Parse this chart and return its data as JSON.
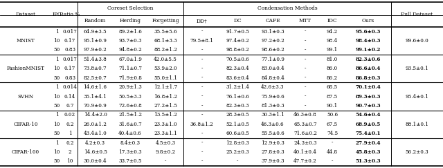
{
  "sections": [
    {
      "name": "MNIST",
      "rows": [
        [
          "1",
          "0.017",
          "64.9±3.5",
          "89.2±1.6",
          "35.5±5.6",
          "-",
          "91.7±0.5",
          "93.1±0.3",
          "-",
          "94.2",
          "95.6±0.3",
          ""
        ],
        [
          "10",
          "0.17",
          "95.1±0.9",
          "93.7±0.3",
          "68.1±3.3",
          "79.5±8.1",
          "97.4±0.2",
          "97.2±0.2",
          "-",
          "98.4",
          "98.4±0.3",
          "99.6±0.0"
        ],
        [
          "50",
          "0.83",
          "97.9±0.2",
          "94.8±0.2",
          "88.2±1.2",
          "-",
          "98.8±0.2",
          "98.6±0.2",
          "-",
          "99.1",
          "99.1±0.2",
          ""
        ]
      ]
    },
    {
      "name": "FashionMNIST",
      "rows": [
        [
          "1",
          "0.017",
          "51.4±3.8",
          "67.0±1.9",
          "42.0±5.5",
          "-",
          "70.5±0.6",
          "77.1±0.9",
          "-",
          "81.0",
          "82.3±0.6",
          ""
        ],
        [
          "10",
          "0.17",
          "73.8±0.7",
          "71.1±0.7",
          "53.9±2.0",
          "-",
          "82.3±0.4",
          "83.0±0.4",
          "-",
          "86.0",
          "86.6±0.4",
          "93.5±0.1"
        ],
        [
          "50",
          "0.83",
          "82.5±0.7",
          "71.9±0.8",
          "55.0±1.1",
          "-",
          "83.6±0.4",
          "84.8±0.4",
          "-",
          "86.2",
          "86.8±0.3",
          ""
        ]
      ]
    },
    {
      "name": "SVHN",
      "rows": [
        [
          "1",
          "0.014",
          "14.6±1.6",
          "20.9±1.3",
          "12.1±1.7",
          "-",
          "31.2±1.4",
          "42.6±3.3",
          "-",
          "68.5",
          "70.1±0.4",
          ""
        ],
        [
          "10",
          "0.14",
          "35.1±4.1",
          "50.5±3.3",
          "16.8±1.2",
          "-",
          "76.1±0.6",
          "75.9±0.6",
          "-",
          "87.5",
          "89.3±0.3",
          "95.4±0.1"
        ],
        [
          "50",
          "0.7",
          "70.9±0.9",
          "72.6±0.8",
          "27.2±1.5",
          "-",
          "82.3±0.3",
          "81.3±0.3",
          "-",
          "90.1",
          "90.7±0.3",
          ""
        ]
      ]
    },
    {
      "name": "CIFAR-10",
      "rows": [
        [
          "1",
          "0.02",
          "14.4±2.0",
          "21.5±1.2",
          "13.5±1.2",
          "-",
          "28.3±0.5",
          "30.3±1.1",
          "46.3±0.8",
          "50.6",
          "54.6±0.4",
          ""
        ],
        [
          "10",
          "0.2",
          "26.0±1.2",
          "31.6±0.7",
          "23.3±1.0",
          "36.8±1.2",
          "52.1±0.5",
          "46.3±0.6",
          "65.3±0.7",
          "67.5",
          "68.9±0.5",
          "88.1±0.1"
        ],
        [
          "50",
          "1",
          "43.4±1.0",
          "40.4±0.6",
          "23.3±1.1",
          "-",
          "60.6±0.5",
          "55.5±0.6",
          "71.6±0.2",
          "74.5",
          "75.4±0.1",
          ""
        ]
      ]
    },
    {
      "name": "CIFAR-100",
      "rows": [
        [
          "1",
          "0.2",
          "4.2±0.3",
          "8.4±0.3",
          "4.5±0.3",
          "-",
          "12.8±0.3",
          "12.9±0.3",
          "24.3±0.3",
          "-",
          "27.9±0.4",
          ""
        ],
        [
          "10",
          "2",
          "14.6±0.5",
          "17.3±0.3",
          "9.8±0.2",
          "-",
          "25.2±0.3",
          "27.8±0.3",
          "40.1±0.4",
          "44.8",
          "45.8±0.3",
          "56.2±0.3"
        ],
        [
          "50",
          "10",
          "30.0±0.4",
          "33.7±0.5",
          "-",
          "-",
          "-",
          "37.9±0.3",
          "47.7±0.2",
          "-",
          "51.3±0.3",
          ""
        ]
      ]
    }
  ],
  "col_labels_row2": [
    "Random",
    "Herding",
    "Forgetting",
    "DD†",
    "DC",
    "CAFE",
    "MTT",
    "IDC",
    "Ours"
  ],
  "fontsize": 5.2,
  "fontsize_header": 5.4
}
